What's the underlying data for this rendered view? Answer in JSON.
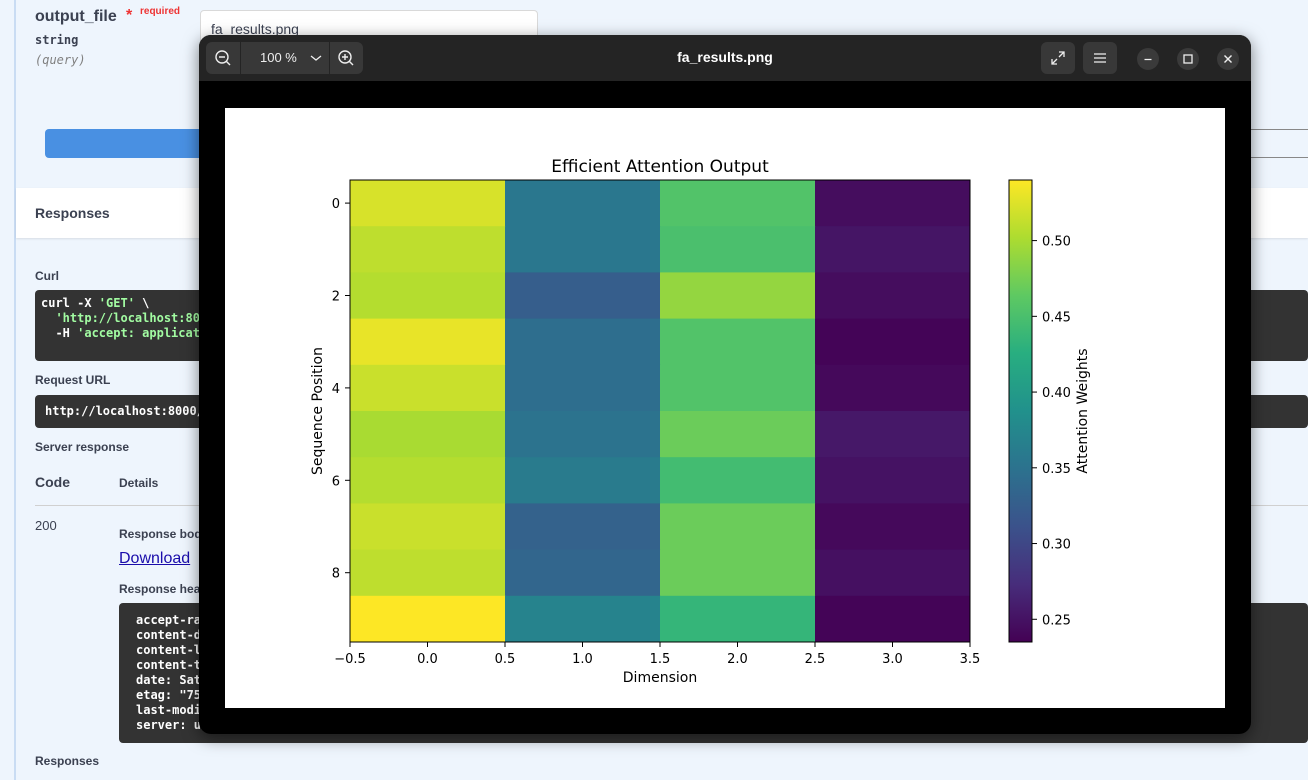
{
  "param": {
    "name": "output_file",
    "required_star": "*",
    "required_label": "required",
    "type": "string",
    "in": "(query)",
    "value": "fa_results.png"
  },
  "responses_title": "Responses",
  "curl": {
    "label": "Curl",
    "line1_a": "curl -X ",
    "line1_b": "'GET'",
    "line1_c": " \\",
    "line2": "  'http://localhost:80",
    "line3_a": "  -H ",
    "line3_b": "'accept: applicat"
  },
  "request_url": {
    "label": "Request URL",
    "value": "http://localhost:8000/"
  },
  "server_response_label": "Server response",
  "table": {
    "code_header": "Code",
    "details_header": "Details",
    "code": "200",
    "response_body_label": "Response bod",
    "download_link": "Download",
    "response_headers_label": "Response hea",
    "headers": [
      "accept-ra",
      "content-d",
      "content-l",
      "content-t",
      "date: Sat",
      "etag: \"75",
      "last-modi",
      "server: u"
    ]
  },
  "bottom_responses": "Responses",
  "viewer": {
    "zoom": "100 %",
    "title": "fa_results.png",
    "icons": [
      "zoom-out-icon",
      "zoom-in-icon",
      "fullscreen-icon",
      "menu-icon",
      "minimize-icon",
      "maximize-icon",
      "close-icon"
    ]
  },
  "chart_data": {
    "type": "heatmap",
    "title": "Efficient Attention Output",
    "xlabel": "Dimension",
    "ylabel": "Sequence Position",
    "colorbar_label": "Attention Weights",
    "colormap": "viridis",
    "x_ticks": [
      "−0.5",
      "0.0",
      "0.5",
      "1.0",
      "1.5",
      "2.0",
      "2.5",
      "3.0",
      "3.5"
    ],
    "y_ticks": [
      "0",
      "2",
      "4",
      "6",
      "8"
    ],
    "colorbar_ticks": [
      "0.25",
      "0.30",
      "0.35",
      "0.40",
      "0.45",
      "0.50"
    ],
    "vmin": 0.235,
    "vmax": 0.54,
    "values": [
      [
        0.522,
        0.355,
        0.455,
        0.245
      ],
      [
        0.51,
        0.355,
        0.45,
        0.252
      ],
      [
        0.505,
        0.325,
        0.49,
        0.245
      ],
      [
        0.53,
        0.345,
        0.455,
        0.238
      ],
      [
        0.515,
        0.345,
        0.455,
        0.242
      ],
      [
        0.5,
        0.35,
        0.47,
        0.255
      ],
      [
        0.505,
        0.36,
        0.445,
        0.25
      ],
      [
        0.515,
        0.33,
        0.47,
        0.242
      ],
      [
        0.51,
        0.335,
        0.47,
        0.248
      ],
      [
        0.54,
        0.37,
        0.435,
        0.238
      ]
    ]
  }
}
